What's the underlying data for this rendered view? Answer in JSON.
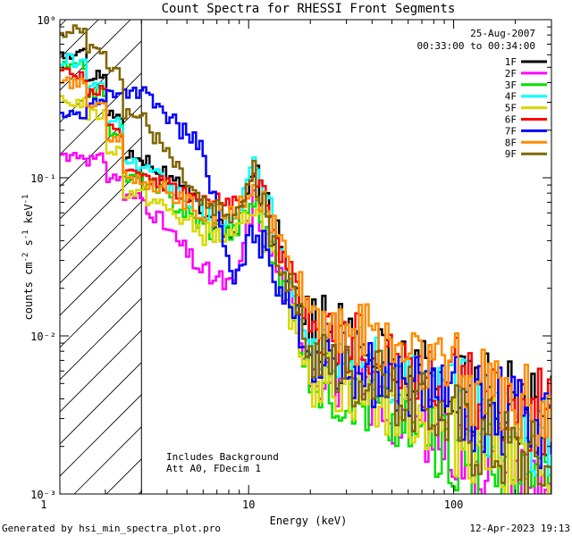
{
  "chart_data": {
    "type": "line",
    "title": "Count Spectra for RHESSI Front Segments",
    "xlabel": "Energy (keV)",
    "ylabel": "counts cm^-2 s^-1 keV^-1",
    "xscale": "log",
    "yscale": "log",
    "xlim": [
      1.2,
      300
    ],
    "ylim": [
      0.001,
      1
    ],
    "grid": false,
    "x_tick_labels": [
      "1",
      "10",
      "100"
    ],
    "x_ticks": [
      1,
      10,
      100
    ],
    "y_tick_labels": [
      "10⁻³",
      "10⁻²",
      "10⁻¹",
      "10⁰"
    ],
    "y_ticks": [
      0.001,
      0.01,
      0.1,
      1
    ],
    "date_label": "25-Aug-2007",
    "time_range_label": "00:33:00 to 00:34:00",
    "annotation_line1": "Includes Background",
    "annotation_line2": "Att A0, FDecim 1",
    "hatched_region": {
      "x_from": 1.2,
      "x_to": 3
    },
    "legend_position": "top-right",
    "series": [
      {
        "name": "1F",
        "color": "#000000",
        "low": [
          0.6,
          0.45,
          0.25,
          0.14
        ],
        "plateau": 0.065,
        "dip": 0.04,
        "peak": 0.11,
        "c20": 0.012,
        "c100": 0.005,
        "c300": 0.003
      },
      {
        "name": "2F",
        "color": "#ff00ff",
        "low": [
          0.14,
          0.13,
          0.1,
          0.075
        ],
        "plateau": 0.025,
        "dip": 0.02,
        "peak": 0.07,
        "c20": 0.007,
        "c100": 0.002,
        "c300": 0.0012
      },
      {
        "name": "3F",
        "color": "#00e000",
        "low": [
          0.5,
          0.35,
          0.2,
          0.1
        ],
        "plateau": 0.05,
        "dip": 0.045,
        "peak": 0.075,
        "c20": 0.006,
        "c100": 0.0018,
        "c300": 0.0012
      },
      {
        "name": "4F",
        "color": "#00ffff",
        "low": [
          0.55,
          0.4,
          0.22,
          0.12
        ],
        "plateau": 0.06,
        "dip": 0.05,
        "peak": 0.12,
        "c20": 0.01,
        "c100": 0.004,
        "c300": 0.002
      },
      {
        "name": "5F",
        "color": "#d7d700",
        "low": [
          0.3,
          0.25,
          0.15,
          0.08
        ],
        "plateau": 0.045,
        "dip": 0.04,
        "peak": 0.07,
        "c20": 0.006,
        "c100": 0.0025,
        "c300": 0.0015
      },
      {
        "name": "6F",
        "color": "#ff0000",
        "low": [
          0.45,
          0.35,
          0.2,
          0.11
        ],
        "plateau": 0.07,
        "dip": 0.07,
        "peak": 0.1,
        "c20": 0.012,
        "c100": 0.005,
        "c300": 0.003
      },
      {
        "name": "7F",
        "color": "#0000ff",
        "low": [
          0.25,
          0.3,
          0.35,
          0.35
        ],
        "plateau": 0.15,
        "dip": 0.02,
        "peak": 0.05,
        "c20": 0.008,
        "c100": 0.004,
        "c300": 0.0025
      },
      {
        "name": "8F",
        "color": "#ff8c00",
        "low": [
          0.4,
          0.3,
          0.18,
          0.1
        ],
        "plateau": 0.06,
        "dip": 0.055,
        "peak": 0.09,
        "c20": 0.014,
        "c100": 0.006,
        "c300": 0.0035
      },
      {
        "name": "9F",
        "color": "#806600",
        "low": [
          0.85,
          0.65,
          0.45,
          0.25
        ],
        "plateau": 0.065,
        "dip": 0.055,
        "peak": 0.1,
        "c20": 0.008,
        "c100": 0.003,
        "c300": 0.0015
      }
    ]
  },
  "footer": {
    "generated_by": "Generated by hsi_min_spectra_plot.pro",
    "timestamp": "12-Apr-2023 19:13"
  }
}
